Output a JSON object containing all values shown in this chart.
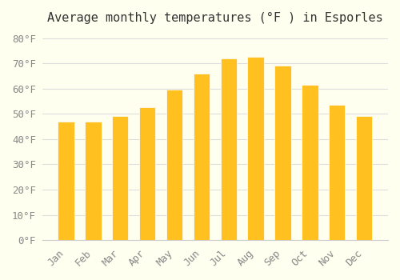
{
  "title": "Average monthly temperatures (°F ) in Esporles",
  "months": [
    "Jan",
    "Feb",
    "Mar",
    "Apr",
    "May",
    "Jun",
    "Jul",
    "Aug",
    "Sep",
    "Oct",
    "Nov",
    "Dec"
  ],
  "values": [
    47,
    47,
    49,
    52.5,
    59.5,
    66,
    72,
    72.5,
    69,
    61.5,
    53.5,
    49
  ],
  "bar_color_top": "#FFC020",
  "bar_color_bottom": "#FFD870",
  "background_color": "#FFFFF0",
  "grid_color": "#DDDDDD",
  "ylim": [
    0,
    83
  ],
  "yticks": [
    0,
    10,
    20,
    30,
    40,
    50,
    60,
    70,
    80
  ],
  "ylabel_suffix": "°F",
  "title_fontsize": 11,
  "tick_fontsize": 9
}
